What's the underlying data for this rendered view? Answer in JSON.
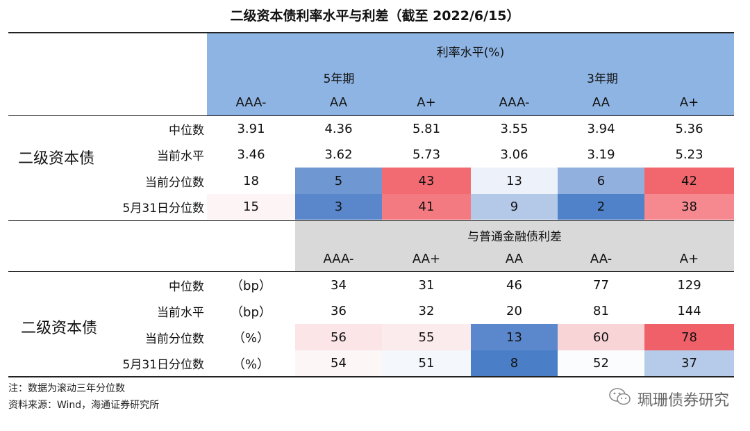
{
  "title": "二级资本债利率水平与利差（截至 2022/6/15）",
  "section1": {
    "group_label": "利率水平(%)",
    "subgroups": [
      "5年期",
      "3年期"
    ],
    "columns": [
      "AAA-",
      "AA",
      "A+",
      "AAA-",
      "AA",
      "A+"
    ],
    "side_label": "二级资本债",
    "rows": [
      {
        "label": "中位数",
        "values": [
          "3.91",
          "4.36",
          "5.81",
          "3.55",
          "3.94",
          "5.36"
        ]
      },
      {
        "label": "当前水平",
        "values": [
          "3.46",
          "3.62",
          "5.73",
          "3.06",
          "3.19",
          "5.23"
        ]
      },
      {
        "label": "当前分位数",
        "values": [
          "18",
          "5",
          "43",
          "13",
          "6",
          "42"
        ]
      },
      {
        "label": "5月31日分位数",
        "values": [
          "15",
          "3",
          "41",
          "9",
          "2",
          "38"
        ]
      }
    ]
  },
  "section2": {
    "group_label": "与普通金融债利差",
    "columns": [
      "AAA-",
      "AA+",
      "AA",
      "AA-",
      "A+"
    ],
    "side_label": "二级资本债",
    "rows": [
      {
        "label": "中位数",
        "unit": "（bp）",
        "values": [
          "34",
          "31",
          "46",
          "77",
          "129"
        ]
      },
      {
        "label": "当前水平",
        "unit": "（bp）",
        "values": [
          "36",
          "32",
          "20",
          "81",
          "144"
        ]
      },
      {
        "label": "当前分位数",
        "unit": "（%）",
        "values": [
          "56",
          "55",
          "13",
          "60",
          "78"
        ]
      },
      {
        "label": "5月31日分位数",
        "unit": "（%）",
        "values": [
          "54",
          "51",
          "8",
          "52",
          "37"
        ]
      }
    ]
  },
  "footer": {
    "note": "注：数据为滚动三年分位数",
    "source": "资料来源：Wind，海通证券研究所"
  },
  "brand": "珮珊债券研究",
  "colors": {
    "header_blue": "#8eb4e3",
    "header_gray": "#d9d9d9",
    "heat_cells_section1": [
      [
        "#ffffff",
        "#6f97d2",
        "#f26b72",
        "#edf1fa",
        "#91b0de",
        "#f1676d"
      ],
      [
        "#fdf4f5",
        "#5a87cb",
        "#f37a81",
        "#b4c9e8",
        "#5082c9",
        "#f6898f"
      ]
    ],
    "heat_cells_section2": [
      [
        "#fbe5e7",
        "#fcebed",
        "#5b88cc",
        "#f9d4d7",
        "#f06068"
      ],
      [
        "#fdf6f7",
        "#f4f7fc",
        "#4a7fc8",
        "#fbfcfe",
        "#b6cbe9"
      ]
    ]
  }
}
